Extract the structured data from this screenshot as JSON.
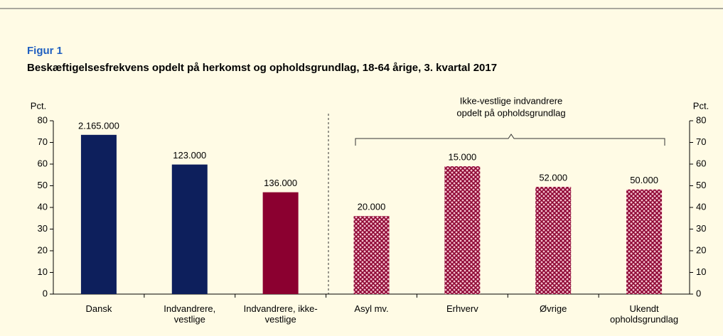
{
  "chart_data": {
    "type": "bar",
    "label": "Figur 1",
    "title": "Beskæftigelsesfrekvens opdelt på herkomst og opholdsgrundlag, 18-64 årige, 3. kvartal 2017",
    "ylabel": "Pct.",
    "y2label": "Pct.",
    "categories": [
      "Dansk",
      "Indvandrere, vestlige",
      "Indvandrere, ikke-vestlige",
      "Asyl mv.",
      "Erhverv",
      "Øvrige",
      "Ukendt opholdsgrundlag"
    ],
    "values": [
      73.5,
      59.8,
      47,
      36,
      59,
      49.5,
      48.3
    ],
    "annotations": [
      "2.165.000",
      "123.000",
      "136.000",
      "20.000",
      "15.000",
      "52.000",
      "50.000"
    ],
    "colors": [
      "#0d1f5c",
      "#0d1f5c",
      "#8b0030",
      "#8b0030",
      "#8b0030",
      "#8b0030",
      "#8b0030"
    ],
    "hatched": [
      false,
      false,
      false,
      true,
      true,
      true,
      true
    ],
    "group_label": [
      "Ikke-vestlige  indvandrere",
      "opdelt på opholdsgrundlag"
    ],
    "ylim": [
      0,
      80
    ],
    "yticks": [
      0,
      10,
      20,
      30,
      40,
      50,
      60,
      70,
      80
    ],
    "y2lim": [
      0,
      80
    ],
    "y2ticks": [
      0,
      10,
      20,
      30,
      40,
      50,
      60,
      70,
      80
    ]
  }
}
